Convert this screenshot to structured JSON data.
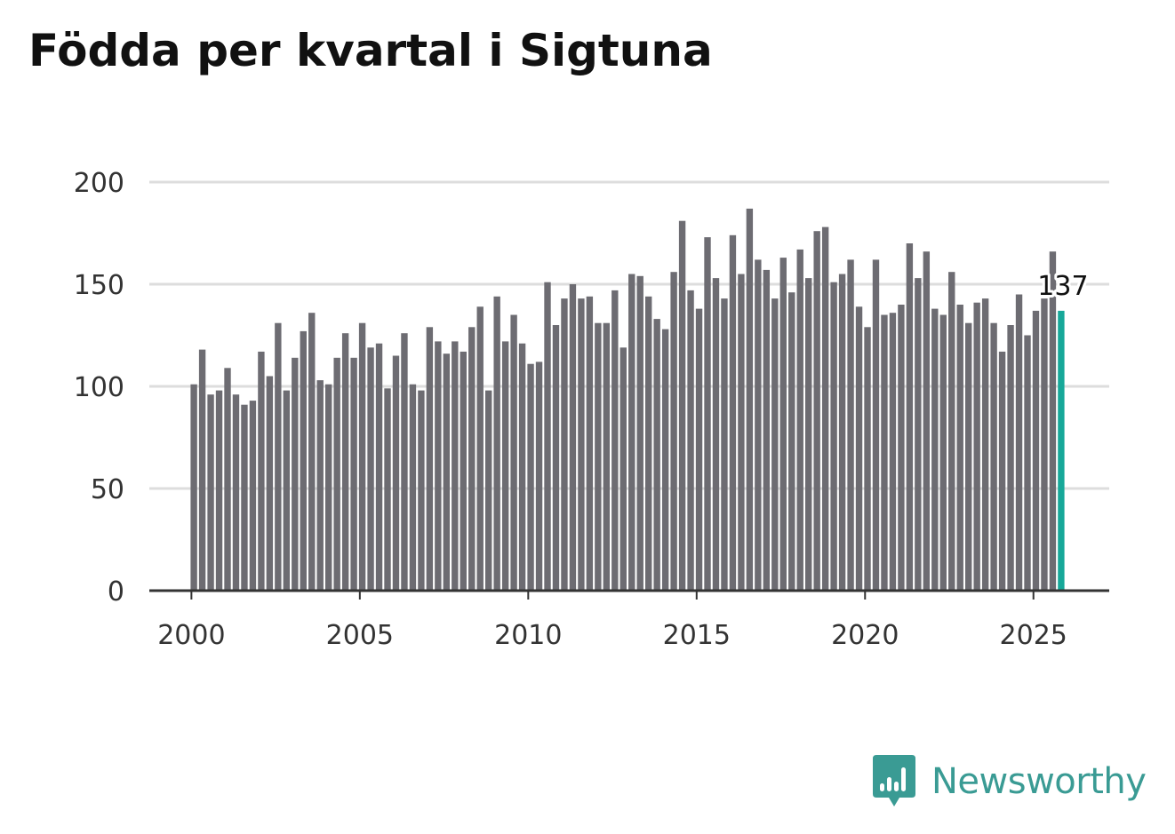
{
  "chart_data": {
    "type": "bar",
    "title": "Födda per kvartal i Sigtuna",
    "xlabel": "",
    "ylabel": "",
    "ylim": [
      0,
      200
    ],
    "yticks": [
      0,
      50,
      100,
      150,
      200
    ],
    "xticks": [
      "2000",
      "2005",
      "2010",
      "2015",
      "2020",
      "2025"
    ],
    "xrange": [
      1998.75,
      2027.25
    ],
    "first_period": 2000,
    "periods_per_year": 4,
    "grid": true,
    "bar_color": "#6d6c72",
    "highlight_color": "#17a899",
    "highlight_label": "137",
    "values": [
      101,
      118,
      96,
      98,
      109,
      96,
      91,
      93,
      117,
      105,
      131,
      98,
      114,
      127,
      136,
      103,
      101,
      114,
      126,
      114,
      131,
      119,
      121,
      99,
      115,
      126,
      101,
      98,
      129,
      122,
      116,
      122,
      117,
      129,
      139,
      98,
      144,
      122,
      135,
      121,
      111,
      112,
      151,
      130,
      143,
      150,
      143,
      144,
      131,
      131,
      147,
      119,
      155,
      154,
      144,
      133,
      128,
      156,
      181,
      147,
      138,
      173,
      153,
      143,
      174,
      155,
      187,
      162,
      157,
      143,
      163,
      146,
      167,
      153,
      176,
      178,
      151,
      155,
      162,
      139,
      129,
      162,
      135,
      136,
      140,
      170,
      153,
      166,
      138,
      135,
      156,
      140,
      131,
      141,
      143,
      131,
      117,
      130,
      145,
      125,
      137,
      143,
      166,
      137
    ]
  },
  "branding": {
    "name": "Newsworthy",
    "color": "#3a9b94"
  }
}
